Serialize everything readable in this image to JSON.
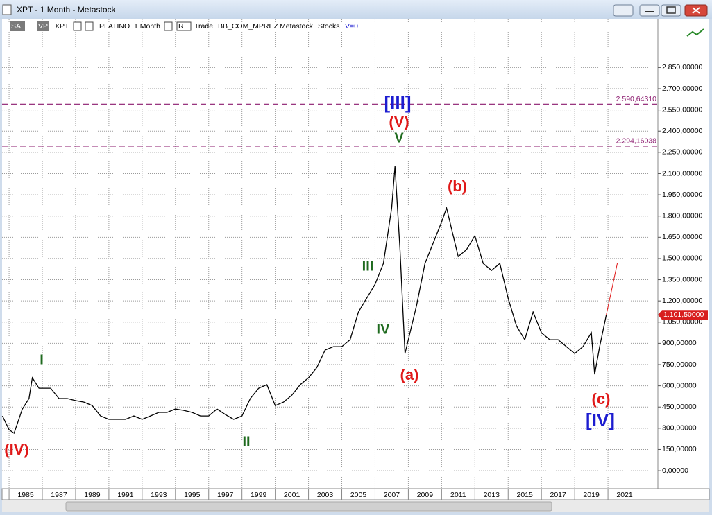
{
  "window": {
    "title": "XPT - 1 Month - Metastock"
  },
  "toolbar": [
    "SA",
    "VP",
    "XPT",
    "PLATINO",
    "1 Month",
    "R",
    "Trade",
    "BB_COM_MPREZ",
    "Metastock",
    "Stocks",
    "V=0"
  ],
  "chart_data": {
    "type": "line",
    "x": [
      1984.6,
      1985.0,
      1985.3,
      1985.8,
      1986.2,
      1986.4,
      1986.8,
      1987.5,
      1988.0,
      1988.5,
      1989.0,
      1989.5,
      1990.0,
      1990.5,
      1991.0,
      1991.5,
      1992.0,
      1992.5,
      1993.0,
      1993.5,
      1994.0,
      1994.5,
      1995.0,
      1995.5,
      1996.0,
      1996.5,
      1997.0,
      1997.5,
      1998.0,
      1998.5,
      1999.0,
      1999.5,
      2000.0,
      2000.5,
      2001.0,
      2001.5,
      2002.0,
      2002.5,
      2003.0,
      2003.5,
      2004.0,
      2004.5,
      2005.0,
      2005.5,
      2006.0,
      2006.5,
      2007.0,
      2007.5,
      2008.0,
      2008.2,
      2008.5,
      2008.8,
      2009.0,
      2009.5,
      2010.0,
      2010.5,
      2011.0,
      2011.3,
      2011.8,
      2012.0,
      2012.5,
      2013.0,
      2013.5,
      2014.0,
      2014.5,
      2015.0,
      2015.5,
      2016.0,
      2016.5,
      2017.0,
      2017.5,
      2018.0,
      2018.5,
      2019.0,
      2019.5,
      2020.0,
      2020.2,
      2020.5,
      2020.9
    ],
    "values": [
      387,
      290,
      265,
      436,
      510,
      657,
      583,
      583,
      510,
      510,
      495,
      485,
      460,
      387,
      363,
      363,
      363,
      387,
      363,
      387,
      412,
      412,
      436,
      426,
      412,
      387,
      387,
      436,
      397,
      363,
      387,
      510,
      583,
      608,
      460,
      485,
      534,
      608,
      657,
      730,
      853,
      877,
      877,
      926,
      1122,
      1220,
      1318,
      1465,
      1857,
      2151,
      1563,
      828,
      926,
      1171,
      1465,
      1612,
      1759,
      1857,
      1612,
      1514,
      1563,
      1661,
      1465,
      1416,
      1465,
      1220,
      1024,
      926,
      1122,
      975,
      926,
      926,
      877,
      828,
      877,
      975,
      681,
      877,
      1101.5
    ],
    "color": "#000000",
    "xlim": [
      1984.58,
      2024.0
    ],
    "ylim": [
      -127,
      3190
    ],
    "xticks": [
      1985,
      1987,
      1989,
      1991,
      1993,
      1995,
      1997,
      1999,
      2001,
      2003,
      2005,
      2007,
      2009,
      2011,
      2013,
      2015,
      2017,
      2019,
      2021
    ],
    "yticks": [
      {
        "value": 0,
        "label": "0,00000"
      },
      {
        "value": 150,
        "label": "150,00000"
      },
      {
        "value": 300,
        "label": "300,00000"
      },
      {
        "value": 450,
        "label": "450,00000"
      },
      {
        "value": 600,
        "label": "600,00000"
      },
      {
        "value": 750,
        "label": "750,00000"
      },
      {
        "value": 900,
        "label": "900,00000"
      },
      {
        "value": 1050,
        "label": "1.050,00000"
      },
      {
        "value": 1200,
        "label": "1.200,00000"
      },
      {
        "value": 1350,
        "label": "1.350,00000"
      },
      {
        "value": 1500,
        "label": "1.500,00000"
      },
      {
        "value": 1650,
        "label": "1.650,00000"
      },
      {
        "value": 1800,
        "label": "1.800,00000"
      },
      {
        "value": 1950,
        "label": "1.950,00000"
      },
      {
        "value": 2100,
        "label": "2.100,00000"
      },
      {
        "value": 2250,
        "label": "2.250,00000"
      },
      {
        "value": 2400,
        "label": "2.400,00000"
      },
      {
        "value": 2550,
        "label": "2.550,00000"
      },
      {
        "value": 2700,
        "label": "2.700,00000"
      },
      {
        "value": 2850,
        "label": "2.850,00000"
      }
    ],
    "grid": true,
    "levels": [
      {
        "value": 2590.6431,
        "label": "2.590,64310"
      },
      {
        "value": 2294.16038,
        "label": "2.294,16038"
      }
    ],
    "last": {
      "value": 1101.5,
      "label": "1.101,50000"
    },
    "annotations": [
      {
        "text": "[III]",
        "color": "#1c1cd0"
      },
      {
        "text": "(V)",
        "color": "#e01818"
      },
      {
        "text": "V",
        "color": "#1e6a1e"
      },
      {
        "text": "(b)",
        "color": "#e01818"
      },
      {
        "text": "III",
        "color": "#1e6a1e"
      },
      {
        "text": "IV",
        "color": "#1e6a1e"
      },
      {
        "text": "(a)",
        "color": "#e01818"
      },
      {
        "text": "I",
        "color": "#1e6a1e"
      },
      {
        "text": "(IV)",
        "color": "#e01818"
      },
      {
        "text": "II",
        "color": "#1e6a1e"
      },
      {
        "text": "(c)",
        "color": "#e01818"
      },
      {
        "text": "[IV]",
        "color": "#1c1cd0"
      }
    ]
  }
}
